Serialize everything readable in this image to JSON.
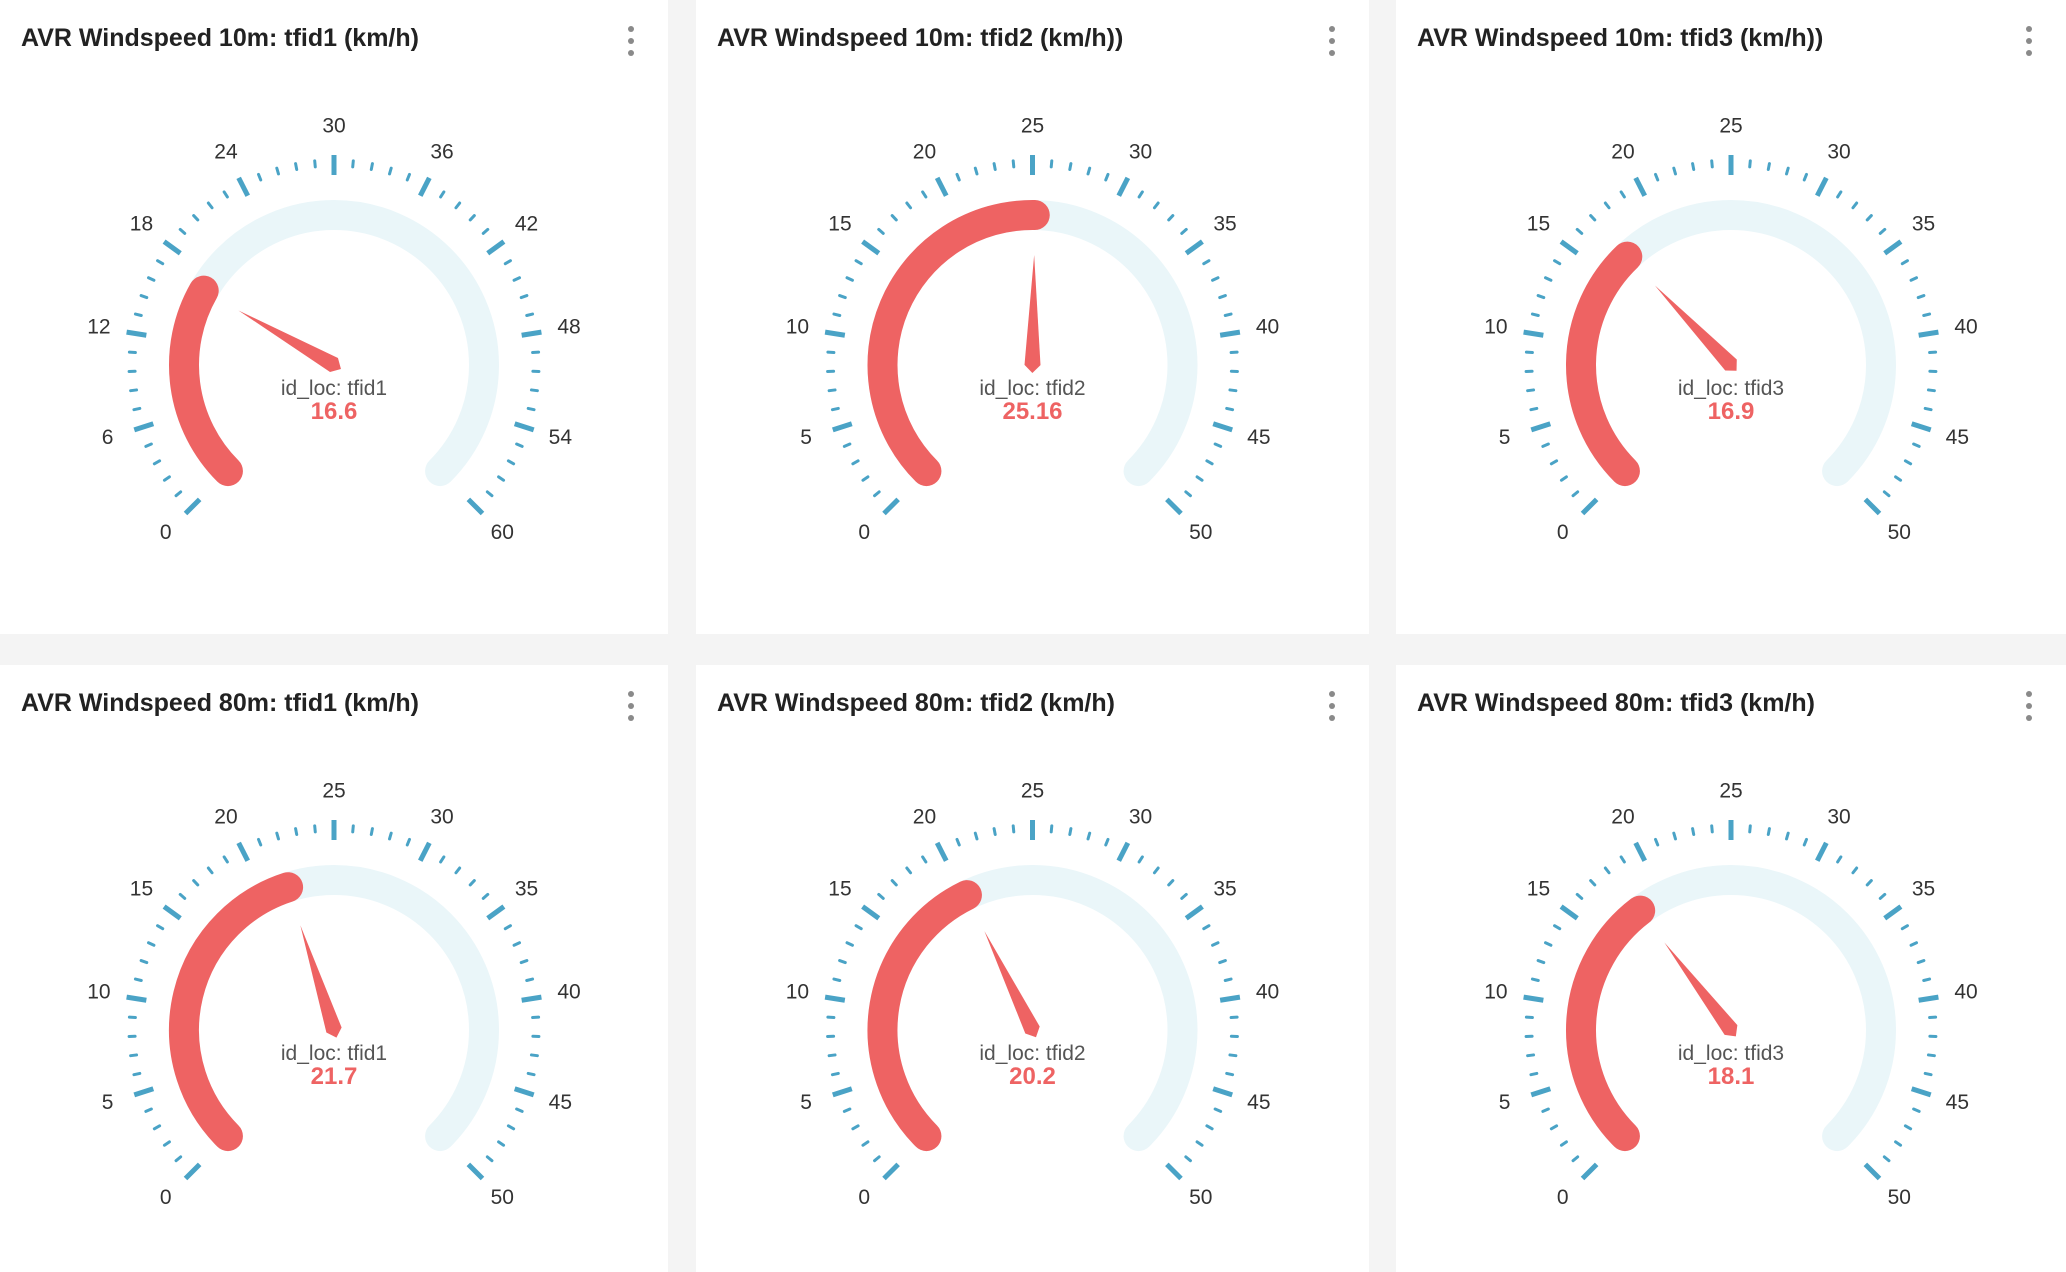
{
  "colors": {
    "value": "#ee6363",
    "track": "#eaf6f9",
    "tick": "#4aa3c6",
    "label": "#333333",
    "caption": "#555555"
  },
  "panels": [
    {
      "title": "AVR Windspeed 10m: tfid1 (km/h)",
      "menu_icon": "more-vertical-icon",
      "chart_data": {
        "type": "gauge",
        "min": 0,
        "max": 60,
        "value": 16.6,
        "tick_labels": [
          "0",
          "6",
          "12",
          "18",
          "24",
          "30",
          "36",
          "42",
          "48",
          "54",
          "60"
        ],
        "caption": "id_loc: tfid1",
        "value_label": "16.6"
      }
    },
    {
      "title": "AVR Windspeed 10m: tfid2 (km/h))",
      "menu_icon": "more-vertical-icon",
      "chart_data": {
        "type": "gauge",
        "min": 0,
        "max": 50,
        "value": 25.16,
        "tick_labels": [
          "0",
          "5",
          "10",
          "15",
          "20",
          "25",
          "30",
          "35",
          "40",
          "45",
          "50"
        ],
        "caption": "id_loc: tfid2",
        "value_label": "25.16"
      }
    },
    {
      "title": "AVR Windspeed 10m: tfid3 (km/h))",
      "menu_icon": "more-vertical-icon",
      "chart_data": {
        "type": "gauge",
        "min": 0,
        "max": 50,
        "value": 16.9,
        "tick_labels": [
          "0",
          "5",
          "10",
          "15",
          "20",
          "25",
          "30",
          "35",
          "40",
          "45",
          "50"
        ],
        "caption": "id_loc: tfid3",
        "value_label": "16.9"
      }
    },
    {
      "title": "AVR Windspeed 80m: tfid1 (km/h)",
      "menu_icon": "more-vertical-icon",
      "chart_data": {
        "type": "gauge",
        "min": 0,
        "max": 50,
        "value": 21.7,
        "tick_labels": [
          "0",
          "5",
          "10",
          "15",
          "20",
          "25",
          "30",
          "35",
          "40",
          "45",
          "50"
        ],
        "caption": "id_loc: tfid1",
        "value_label": "21.7"
      }
    },
    {
      "title": "AVR Windspeed 80m: tfid2 (km/h)",
      "menu_icon": "more-vertical-icon",
      "chart_data": {
        "type": "gauge",
        "min": 0,
        "max": 50,
        "value": 20.2,
        "tick_labels": [
          "0",
          "5",
          "10",
          "15",
          "20",
          "25",
          "30",
          "35",
          "40",
          "45",
          "50"
        ],
        "caption": "id_loc: tfid2",
        "value_label": "20.2"
      }
    },
    {
      "title": "AVR Windspeed 80m: tfid3 (km/h)",
      "menu_icon": "more-vertical-icon",
      "chart_data": {
        "type": "gauge",
        "min": 0,
        "max": 50,
        "value": 18.1,
        "tick_labels": [
          "0",
          "5",
          "10",
          "15",
          "20",
          "25",
          "30",
          "35",
          "40",
          "45",
          "50"
        ],
        "caption": "id_loc: tfid3",
        "value_label": "18.1"
      }
    }
  ]
}
